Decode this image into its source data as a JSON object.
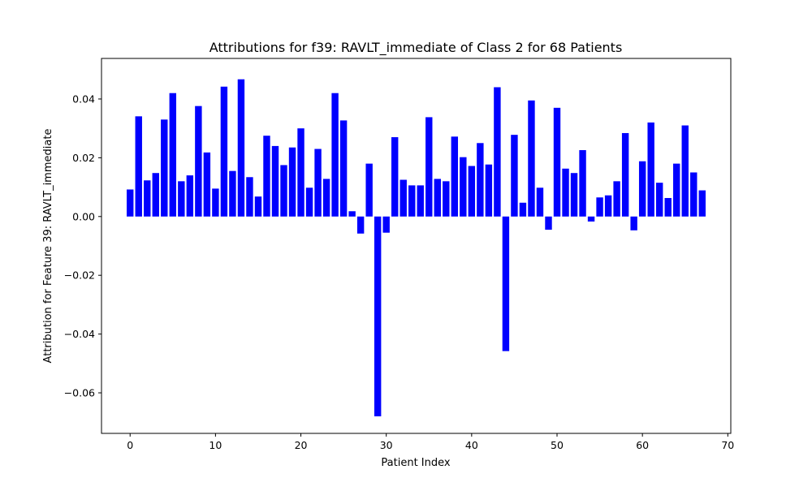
{
  "chart_data": {
    "type": "bar",
    "title": "Attributions for f39: RAVLT_immediate of Class 2 for 68 Patients",
    "xlabel": "Patient Index",
    "ylabel": "Attribution for Feature 39: RAVLT_immediate",
    "bar_color": "#0000ff",
    "xlim": [
      -3.35,
      70.35
    ],
    "ylim": [
      -0.0738,
      0.0538
    ],
    "x_ticks": [
      0,
      10,
      20,
      30,
      40,
      50,
      60,
      70
    ],
    "y_ticks": [
      -0.06,
      -0.04,
      -0.02,
      0.0,
      0.02,
      0.04
    ],
    "y_tick_labels": [
      "−0.06",
      "−0.04",
      "−0.02",
      "0.00",
      "0.02",
      "0.04"
    ],
    "x": [
      0,
      1,
      2,
      3,
      4,
      5,
      6,
      7,
      8,
      9,
      10,
      11,
      12,
      13,
      14,
      15,
      16,
      17,
      18,
      19,
      20,
      21,
      22,
      23,
      24,
      25,
      26,
      27,
      28,
      29,
      30,
      31,
      32,
      33,
      34,
      35,
      36,
      37,
      38,
      39,
      40,
      41,
      42,
      43,
      44,
      45,
      46,
      47,
      48,
      49,
      50,
      51,
      52,
      53,
      54,
      55,
      56,
      57,
      58,
      59,
      60,
      61,
      62,
      63,
      64,
      65,
      66,
      67
    ],
    "values": [
      0.0092,
      0.0341,
      0.0123,
      0.0148,
      0.033,
      0.042,
      0.012,
      0.014,
      0.0376,
      0.0218,
      0.0095,
      0.0442,
      0.0155,
      0.0467,
      0.0134,
      0.0068,
      0.0275,
      0.024,
      0.0175,
      0.0235,
      0.03,
      0.0098,
      0.023,
      0.0128,
      0.042,
      0.0327,
      0.0018,
      -0.0058,
      0.018,
      -0.068,
      -0.0055,
      0.027,
      0.0125,
      0.0106,
      0.0106,
      0.0338,
      0.0128,
      0.012,
      0.0272,
      0.0202,
      0.0172,
      0.025,
      0.0177,
      0.044,
      -0.0458,
      0.0278,
      0.0047,
      0.0395,
      0.0098,
      -0.0045,
      0.037,
      0.0163,
      0.0148,
      0.0226,
      -0.0017,
      0.0065,
      0.0072,
      0.012,
      0.0284,
      -0.0047,
      0.0188,
      0.032,
      0.0115,
      0.0063,
      0.018,
      0.031,
      0.015,
      0.0089
    ]
  }
}
